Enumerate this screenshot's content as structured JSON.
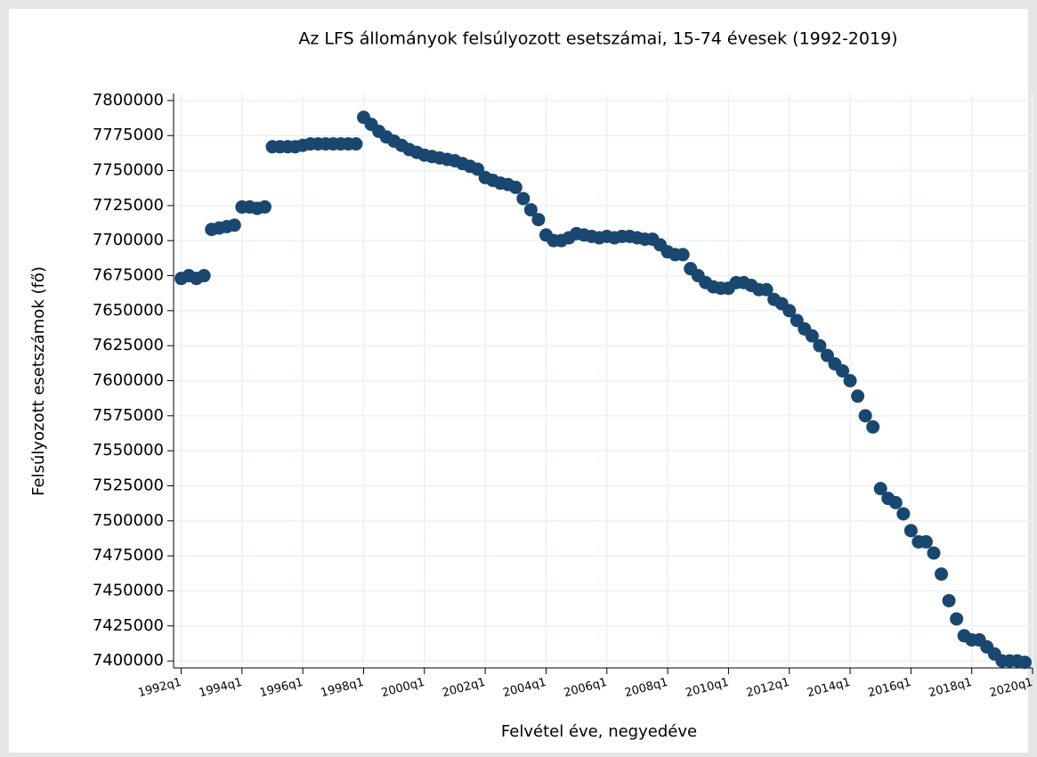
{
  "chart_data": {
    "type": "scatter",
    "title": "Az LFS állományok felsúlyozott esetszámai, 15-74 évesek (1992-2019)",
    "xlabel": "Felvétel éve, negyedéve",
    "ylabel": "Felsúlyozott esetszámok (fő)",
    "color": "#1a476f",
    "grid": true,
    "xlim": [
      1991.75,
      2020.0
    ],
    "ylim": [
      7395000,
      7805000
    ],
    "xticks": [
      {
        "value": 1992,
        "label": "1992q1"
      },
      {
        "value": 1994,
        "label": "1994q1"
      },
      {
        "value": 1996,
        "label": "1996q1"
      },
      {
        "value": 1998,
        "label": "1998q1"
      },
      {
        "value": 2000,
        "label": "2000q1"
      },
      {
        "value": 2002,
        "label": "2002q1"
      },
      {
        "value": 2004,
        "label": "2004q1"
      },
      {
        "value": 2006,
        "label": "2006q1"
      },
      {
        "value": 2008,
        "label": "2008q1"
      },
      {
        "value": 2010,
        "label": "2010q1"
      },
      {
        "value": 2012,
        "label": "2012q1"
      },
      {
        "value": 2014,
        "label": "2014q1"
      },
      {
        "value": 2016,
        "label": "2016q1"
      },
      {
        "value": 2018,
        "label": "2018q1"
      },
      {
        "value": 2020,
        "label": "2020q1"
      }
    ],
    "yticks": [
      7400000,
      7425000,
      7450000,
      7475000,
      7500000,
      7525000,
      7550000,
      7575000,
      7600000,
      7625000,
      7650000,
      7675000,
      7700000,
      7725000,
      7750000,
      7775000,
      7800000
    ],
    "x": [
      1992,
      1992.25,
      1992.5,
      1992.75,
      1993,
      1993.25,
      1993.5,
      1993.75,
      1994,
      1994.25,
      1994.5,
      1994.75,
      1995,
      1995.25,
      1995.5,
      1995.75,
      1996,
      1996.25,
      1996.5,
      1996.75,
      1997,
      1997.25,
      1997.5,
      1997.75,
      1998,
      1998.25,
      1998.5,
      1998.75,
      1999,
      1999.25,
      1999.5,
      1999.75,
      2000,
      2000.25,
      2000.5,
      2000.75,
      2001,
      2001.25,
      2001.5,
      2001.75,
      2002,
      2002.25,
      2002.5,
      2002.75,
      2003,
      2003.25,
      2003.5,
      2003.75,
      2004,
      2004.25,
      2004.5,
      2004.75,
      2005,
      2005.25,
      2005.5,
      2005.75,
      2006,
      2006.25,
      2006.5,
      2006.75,
      2007,
      2007.25,
      2007.5,
      2007.75,
      2008,
      2008.25,
      2008.5,
      2008.75,
      2009,
      2009.25,
      2009.5,
      2009.75,
      2010,
      2010.25,
      2010.5,
      2010.75,
      2011,
      2011.25,
      2011.5,
      2011.75,
      2012,
      2012.25,
      2012.5,
      2012.75,
      2013,
      2013.25,
      2013.5,
      2013.75,
      2014,
      2014.25,
      2014.5,
      2014.75,
      2015,
      2015.25,
      2015.5,
      2015.75,
      2016,
      2016.25,
      2016.5,
      2016.75,
      2017,
      2017.25,
      2017.5,
      2017.75,
      2018,
      2018.25,
      2018.5,
      2018.75,
      2019,
      2019.25,
      2019.5,
      2019.75
    ],
    "values": [
      7673000,
      7675000,
      7673000,
      7675000,
      7708000,
      7709000,
      7710000,
      7711000,
      7724000,
      7724000,
      7723000,
      7724000,
      7767000,
      7767000,
      7767000,
      7767000,
      7768000,
      7769000,
      7769000,
      7769000,
      7769000,
      7769000,
      7769000,
      7769000,
      7788000,
      7783000,
      7778000,
      7774000,
      7771000,
      7768000,
      7765000,
      7763000,
      7761000,
      7760000,
      7759000,
      7758000,
      7757000,
      7755000,
      7753000,
      7751000,
      7745000,
      7743000,
      7741000,
      7740000,
      7738000,
      7730000,
      7722000,
      7715000,
      7704000,
      7700000,
      7700000,
      7702000,
      7705000,
      7704000,
      7703000,
      7702000,
      7703000,
      7702000,
      7703000,
      7703000,
      7702000,
      7701000,
      7701000,
      7697000,
      7692000,
      7690000,
      7690000,
      7680000,
      7675000,
      7670000,
      7667000,
      7666000,
      7666000,
      7670000,
      7670000,
      7668000,
      7665000,
      7665000,
      7658000,
      7655000,
      7650000,
      7643000,
      7637000,
      7632000,
      7625000,
      7618000,
      7612000,
      7607000,
      7600000,
      7589000,
      7575000,
      7567000,
      7523000,
      7516000,
      7513000,
      7505000,
      7493000,
      7485000,
      7485000,
      7477000,
      7462000,
      7443000,
      7430000,
      7418000,
      7415000,
      7415000,
      7410000,
      7405000,
      7400000,
      7400000,
      7400000,
      7399000
    ]
  }
}
